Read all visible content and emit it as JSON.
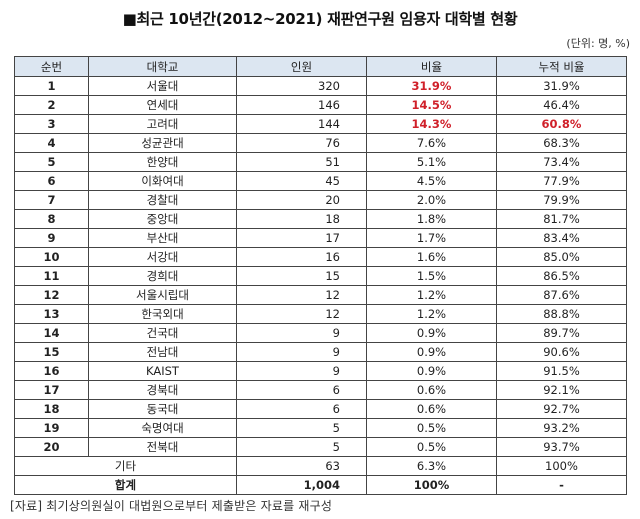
{
  "title": "■최근 10년간(2012~2021) 재판연구원 임용자 대학별 현황",
  "unit": "(단위: 명, %)",
  "table": {
    "headers": [
      "순번",
      "대학교",
      "인원",
      "비율",
      "누적 비율"
    ],
    "rows": [
      {
        "rank": "1",
        "school": "서울대",
        "count": "320",
        "ratio": "31.9%",
        "cumulative": "31.9%",
        "ratio_red": true,
        "cum_red": false
      },
      {
        "rank": "2",
        "school": "연세대",
        "count": "146",
        "ratio": "14.5%",
        "cumulative": "46.4%",
        "ratio_red": true,
        "cum_red": false
      },
      {
        "rank": "3",
        "school": "고려대",
        "count": "144",
        "ratio": "14.3%",
        "cumulative": "60.8%",
        "ratio_red": true,
        "cum_red": true
      },
      {
        "rank": "4",
        "school": "성균관대",
        "count": "76",
        "ratio": "7.6%",
        "cumulative": "68.3%"
      },
      {
        "rank": "5",
        "school": "한양대",
        "count": "51",
        "ratio": "5.1%",
        "cumulative": "73.4%"
      },
      {
        "rank": "6",
        "school": "이화여대",
        "count": "45",
        "ratio": "4.5%",
        "cumulative": "77.9%"
      },
      {
        "rank": "7",
        "school": "경찰대",
        "count": "20",
        "ratio": "2.0%",
        "cumulative": "79.9%"
      },
      {
        "rank": "8",
        "school": "중앙대",
        "count": "18",
        "ratio": "1.8%",
        "cumulative": "81.7%"
      },
      {
        "rank": "9",
        "school": "부산대",
        "count": "17",
        "ratio": "1.7%",
        "cumulative": "83.4%"
      },
      {
        "rank": "10",
        "school": "서강대",
        "count": "16",
        "ratio": "1.6%",
        "cumulative": "85.0%"
      },
      {
        "rank": "11",
        "school": "경희대",
        "count": "15",
        "ratio": "1.5%",
        "cumulative": "86.5%"
      },
      {
        "rank": "12",
        "school": "서울시립대",
        "count": "12",
        "ratio": "1.2%",
        "cumulative": "87.6%"
      },
      {
        "rank": "13",
        "school": "한국외대",
        "count": "12",
        "ratio": "1.2%",
        "cumulative": "88.8%"
      },
      {
        "rank": "14",
        "school": "건국대",
        "count": "9",
        "ratio": "0.9%",
        "cumulative": "89.7%"
      },
      {
        "rank": "15",
        "school": "전남대",
        "count": "9",
        "ratio": "0.9%",
        "cumulative": "90.6%"
      },
      {
        "rank": "16",
        "school": "KAIST",
        "count": "9",
        "ratio": "0.9%",
        "cumulative": "91.5%"
      },
      {
        "rank": "17",
        "school": "경북대",
        "count": "6",
        "ratio": "0.6%",
        "cumulative": "92.1%"
      },
      {
        "rank": "18",
        "school": "동국대",
        "count": "6",
        "ratio": "0.6%",
        "cumulative": "92.7%"
      },
      {
        "rank": "19",
        "school": "숙명여대",
        "count": "5",
        "ratio": "0.5%",
        "cumulative": "93.2%"
      },
      {
        "rank": "20",
        "school": "전북대",
        "count": "5",
        "ratio": "0.5%",
        "cumulative": "93.7%"
      }
    ],
    "other": {
      "label": "기타",
      "count": "63",
      "ratio": "6.3%",
      "cumulative": "100%"
    },
    "total": {
      "label": "합계",
      "count": "1,004",
      "ratio": "100%",
      "cumulative": "-"
    }
  },
  "colors": {
    "header_bg": "#dce6f1",
    "highlight": "#d0202a"
  },
  "source": "[자료] 최기상의원실이 대법원으로부터 제출받은 자료를 재구성"
}
